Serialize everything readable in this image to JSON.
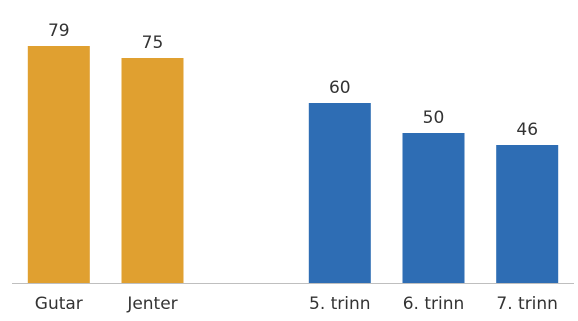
{
  "chart_data": {
    "type": "bar",
    "categories": [
      "Gutar",
      "Jenter",
      "",
      "5. trinn",
      "6. trinn",
      "7. trinn"
    ],
    "values": [
      79,
      75,
      null,
      60,
      50,
      46
    ],
    "bar_colors": [
      "#E0A030",
      "#E0A030",
      null,
      "#2E6DB4",
      "#2E6DB4",
      "#2E6DB4"
    ],
    "title": "",
    "xlabel": "",
    "ylabel": "",
    "ylim": [
      0,
      90
    ],
    "grid": false,
    "legend": "none",
    "axis_line_color": "#bfbfbf",
    "label_color": "#333333"
  }
}
